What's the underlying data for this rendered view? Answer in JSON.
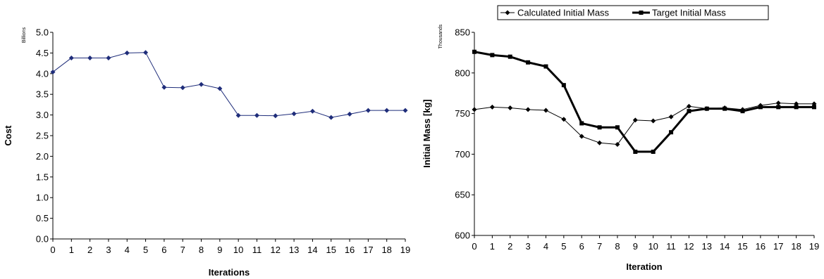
{
  "chart_data": [
    {
      "type": "line",
      "title": "",
      "xlabel": "Iterations",
      "ylabel": "Cost",
      "y_units_label": "Billions",
      "x": [
        0,
        1,
        2,
        3,
        4,
        5,
        6,
        7,
        8,
        9,
        10,
        11,
        12,
        13,
        14,
        15,
        16,
        17,
        18,
        19
      ],
      "xlim": [
        0,
        19
      ],
      "ylim": [
        0.0,
        5.0
      ],
      "y_ticks": [
        "0.0",
        "0.5",
        "1.0",
        "1.5",
        "2.0",
        "2.5",
        "3.0",
        "3.5",
        "4.0",
        "4.5",
        "5.0"
      ],
      "grid": false,
      "legend": "none",
      "series": [
        {
          "color": "#1f2d7a",
          "marker": "diamond",
          "values": [
            4.04,
            4.38,
            4.38,
            4.38,
            4.5,
            4.51,
            3.67,
            3.66,
            3.74,
            3.64,
            2.99,
            2.99,
            2.98,
            3.03,
            3.09,
            2.94,
            3.02,
            3.11,
            3.11,
            3.11
          ]
        }
      ]
    },
    {
      "type": "line",
      "title": "",
      "xlabel": "Iteration",
      "ylabel": "Initial Mass [kg]",
      "y_units_label": "Thousands",
      "x": [
        0,
        1,
        2,
        3,
        4,
        5,
        6,
        7,
        8,
        9,
        10,
        11,
        12,
        13,
        14,
        15,
        16,
        17,
        18,
        19
      ],
      "xlim": [
        0,
        19
      ],
      "ylim": [
        600,
        850
      ],
      "y_ticks": [
        "600",
        "650",
        "700",
        "750",
        "800",
        "850"
      ],
      "grid": false,
      "legend": "top",
      "series": [
        {
          "name": "Calculated Initial Mass",
          "color": "#000000",
          "marker": "diamond",
          "line_weight": "thin",
          "values": [
            755,
            758,
            757,
            755,
            754,
            743,
            722,
            714,
            712,
            742,
            741,
            746,
            759,
            756,
            757,
            755,
            760,
            763,
            762,
            762
          ]
        },
        {
          "name": "Target Initial Mass",
          "color": "#000000",
          "marker": "square",
          "line_weight": "thick",
          "values": [
            826,
            822,
            820,
            813,
            808,
            785,
            738,
            733,
            733,
            703,
            703,
            727,
            753,
            756,
            756,
            753,
            758,
            758,
            758,
            758
          ]
        }
      ]
    }
  ]
}
